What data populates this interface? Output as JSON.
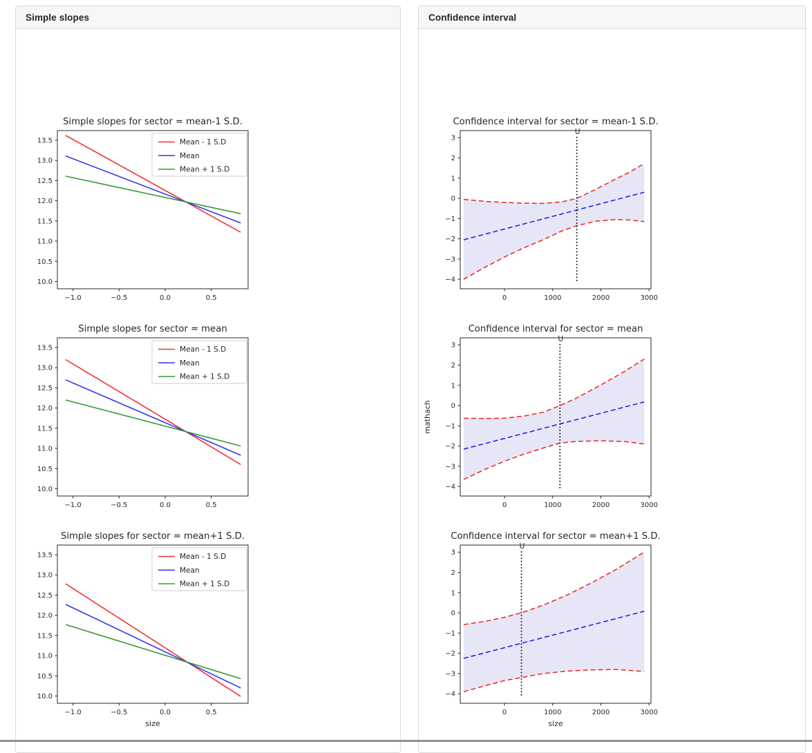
{
  "panels": {
    "simple_slopes": {
      "header": "Simple slopes"
    },
    "confidence": {
      "header": "Confidence interval"
    }
  },
  "colors": {
    "slope_red": "#ee3333",
    "slope_blue": "#3333ee",
    "slope_green": "#339933",
    "ci_red": "#ee2222",
    "ci_blue": "#2222ee",
    "ci_fill": "#e6e6f7",
    "vline_black": "#111111",
    "header_bg": "#f7f7f7",
    "card_border": "#d9d9d9"
  },
  "chart_data": {
    "simple_slopes": [
      {
        "type": "line",
        "title": "Simple slopes for sector = mean-1 S.D.",
        "xlabel": "",
        "ylabel": "",
        "xlim": [
          -1.17,
          0.9
        ],
        "ylim": [
          9.82,
          13.74
        ],
        "xticks": [
          -1.0,
          -0.5,
          0.0,
          0.5
        ],
        "xtick_labels": [
          "−1.0",
          "−0.5",
          "0.0",
          "0.5"
        ],
        "yticks": [
          10.0,
          10.5,
          11.0,
          11.5,
          12.0,
          12.5,
          13.0,
          13.5
        ],
        "ytick_labels": [
          "10.0",
          "10.5",
          "11.0",
          "11.5",
          "12.0",
          "12.5",
          "13.0",
          "13.5"
        ],
        "legend": true,
        "series": [
          {
            "name": "Mean - 1 S.D",
            "color": "#ee3333",
            "x": [
              -1.08,
              0.82
            ],
            "y": [
              13.62,
              11.22
            ]
          },
          {
            "name": "Mean",
            "color": "#3333ee",
            "x": [
              -1.08,
              0.82
            ],
            "y": [
              13.11,
              11.45
            ]
          },
          {
            "name": "Mean + 1 S.D",
            "color": "#339933",
            "x": [
              -1.08,
              0.82
            ],
            "y": [
              12.61,
              11.68
            ]
          }
        ]
      },
      {
        "type": "line",
        "title": "Simple slopes for sector = mean",
        "xlabel": "",
        "ylabel": "",
        "xlim": [
          -1.17,
          0.9
        ],
        "ylim": [
          9.82,
          13.74
        ],
        "xticks": [
          -1.0,
          -0.5,
          0.0,
          0.5
        ],
        "xtick_labels": [
          "−1.0",
          "−0.5",
          "0.0",
          "0.5"
        ],
        "yticks": [
          10.0,
          10.5,
          11.0,
          11.5,
          12.0,
          12.5,
          13.0,
          13.5
        ],
        "ytick_labels": [
          "10.0",
          "10.5",
          "11.0",
          "11.5",
          "12.0",
          "12.5",
          "13.0",
          "13.5"
        ],
        "legend": true,
        "series": [
          {
            "name": "Mean - 1 S.D",
            "color": "#ee3333",
            "x": [
              -1.08,
              0.82
            ],
            "y": [
              13.2,
              10.6
            ]
          },
          {
            "name": "Mean",
            "color": "#3333ee",
            "x": [
              -1.08,
              0.82
            ],
            "y": [
              12.7,
              10.83
            ]
          },
          {
            "name": "Mean + 1 S.D",
            "color": "#339933",
            "x": [
              -1.08,
              0.82
            ],
            "y": [
              12.2,
              11.06
            ]
          }
        ]
      },
      {
        "type": "line",
        "title": "Simple slopes for sector = mean+1 S.D.",
        "xlabel": "size",
        "ylabel": "",
        "xlim": [
          -1.17,
          0.9
        ],
        "ylim": [
          9.82,
          13.74
        ],
        "xticks": [
          -1.0,
          -0.5,
          0.0,
          0.5
        ],
        "xtick_labels": [
          "−1.0",
          "−0.5",
          "0.0",
          "0.5"
        ],
        "yticks": [
          10.0,
          10.5,
          11.0,
          11.5,
          12.0,
          12.5,
          13.0,
          13.5
        ],
        "ytick_labels": [
          "10.0",
          "10.5",
          "11.0",
          "11.5",
          "12.0",
          "12.5",
          "13.0",
          "13.5"
        ],
        "legend": true,
        "series": [
          {
            "name": "Mean - 1 S.D",
            "color": "#ee3333",
            "x": [
              -1.08,
              0.82
            ],
            "y": [
              12.78,
              9.99
            ]
          },
          {
            "name": "Mean",
            "color": "#3333ee",
            "x": [
              -1.08,
              0.82
            ],
            "y": [
              12.27,
              10.2
            ]
          },
          {
            "name": "Mean + 1 S.D",
            "color": "#339933",
            "x": [
              -1.08,
              0.82
            ],
            "y": [
              11.77,
              10.43
            ]
          }
        ]
      }
    ],
    "confidence": [
      {
        "type": "line",
        "title": "Confidence interval for sector = mean-1 S.D.",
        "xlabel": "",
        "ylabel": "",
        "xlim": [
          -920,
          3040
        ],
        "ylim": [
          -4.47,
          3.35
        ],
        "xticks": [
          0,
          1000,
          2000,
          3000
        ],
        "xtick_labels": [
          "0",
          "1000",
          "2000",
          "3000"
        ],
        "yticks": [
          -4,
          -3,
          -2,
          -1,
          0,
          1,
          2,
          3
        ],
        "ytick_labels": [
          "−4",
          "−3",
          "−2",
          "−1",
          "0",
          "1",
          "2",
          "3"
        ],
        "legend": false,
        "fill": {
          "color": "#e6e6f7",
          "line_color": "#ee2222",
          "line_dash": "7,4",
          "x": [
            -850,
            -400,
            0,
            400,
            800,
            1200,
            1500,
            1900,
            2300,
            2600,
            2900
          ],
          "upper": [
            -0.05,
            -0.15,
            -0.2,
            -0.24,
            -0.25,
            -0.17,
            0.0,
            0.45,
            0.95,
            1.3,
            1.72
          ],
          "lower": [
            -4.0,
            -3.4,
            -2.9,
            -2.45,
            -2.05,
            -1.6,
            -1.35,
            -1.13,
            -1.05,
            -1.07,
            -1.15
          ]
        },
        "series": [
          {
            "name": "fit",
            "color": "#2222ee",
            "dash": "7,4",
            "x": [
              -850,
              2900
            ],
            "y": [
              -2.05,
              0.3
            ]
          }
        ],
        "vline": {
          "x": 1500,
          "label": "U",
          "color": "#111111"
        }
      },
      {
        "type": "line",
        "title": "Confidence interval for sector = mean",
        "xlabel": "",
        "ylabel": "mathach",
        "xlim": [
          -920,
          3040
        ],
        "ylim": [
          -4.47,
          3.35
        ],
        "xticks": [
          0,
          1000,
          2000,
          3000
        ],
        "xtick_labels": [
          "0",
          "1000",
          "2000",
          "3000"
        ],
        "yticks": [
          -4,
          -3,
          -2,
          -1,
          0,
          1,
          2,
          3
        ],
        "ytick_labels": [
          "−4",
          "−3",
          "−2",
          "−1",
          "0",
          "1",
          "2",
          "3"
        ],
        "legend": false,
        "fill": {
          "color": "#e6e6f7",
          "line_color": "#ee2222",
          "line_dash": "7,4",
          "x": [
            -850,
            -400,
            0,
            400,
            800,
            1150,
            1500,
            2000,
            2500,
            2900
          ],
          "upper": [
            -0.63,
            -0.64,
            -0.62,
            -0.52,
            -0.33,
            0.0,
            0.38,
            1.02,
            1.7,
            2.3
          ],
          "lower": [
            -3.65,
            -3.15,
            -2.75,
            -2.4,
            -2.1,
            -1.85,
            -1.77,
            -1.74,
            -1.78,
            -1.9
          ]
        },
        "series": [
          {
            "name": "fit",
            "color": "#2222ee",
            "dash": "7,4",
            "x": [
              -850,
              2900
            ],
            "y": [
              -2.15,
              0.18
            ]
          }
        ],
        "vline": {
          "x": 1150,
          "label": "U",
          "color": "#111111"
        }
      },
      {
        "type": "line",
        "title": "Confidence interval for sector = mean+1 S.D.",
        "xlabel": "size",
        "ylabel": "",
        "xlim": [
          -920,
          3040
        ],
        "ylim": [
          -4.47,
          3.35
        ],
        "xticks": [
          0,
          1000,
          2000,
          3000
        ],
        "xtick_labels": [
          "0",
          "1000",
          "2000",
          "3000"
        ],
        "yticks": [
          -4,
          -3,
          -2,
          -1,
          0,
          1,
          2,
          3
        ],
        "ytick_labels": [
          "−4",
          "−3",
          "−2",
          "−1",
          "0",
          "1",
          "2",
          "3"
        ],
        "legend": false,
        "fill": {
          "color": "#e6e6f7",
          "line_color": "#ee2222",
          "line_dash": "7,4",
          "x": [
            -850,
            -400,
            0,
            350,
            800,
            1300,
            1800,
            2300,
            2900
          ],
          "upper": [
            -0.58,
            -0.42,
            -0.22,
            0.0,
            0.38,
            0.88,
            1.48,
            2.12,
            3.0
          ],
          "lower": [
            -3.9,
            -3.6,
            -3.35,
            -3.2,
            -3.0,
            -2.88,
            -2.82,
            -2.8,
            -2.9
          ]
        },
        "series": [
          {
            "name": "fit",
            "color": "#2222ee",
            "dash": "7,4",
            "x": [
              -850,
              2900
            ],
            "y": [
              -2.25,
              0.08
            ]
          }
        ],
        "vline": {
          "x": 350,
          "label": "U",
          "color": "#111111"
        }
      }
    ]
  }
}
